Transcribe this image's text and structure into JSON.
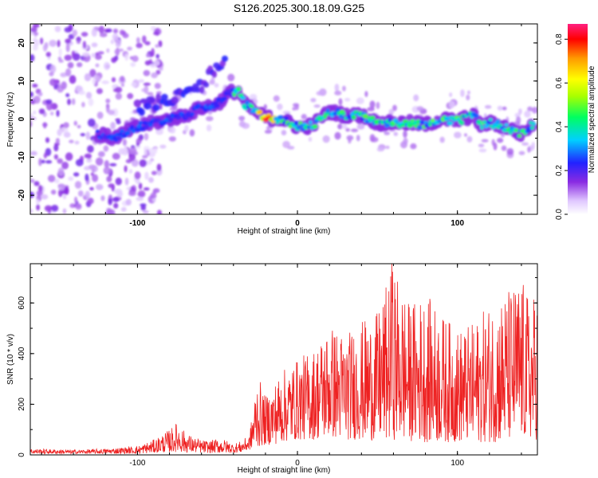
{
  "title": "S126.2025.300.18.09.G25",
  "chart_data": [
    {
      "type": "heatmap",
      "title": "S126.2025.300.18.09.G25",
      "xlabel": "Height of straight line (km)",
      "ylabel": "Frequency (Hz)",
      "xlim": [
        -167,
        150
      ],
      "ylim": [
        -25,
        25
      ],
      "xticks": [
        -100,
        0,
        100
      ],
      "xtick_labels": [
        "-100",
        "0",
        "100"
      ],
      "yticks": [
        -20,
        -10,
        0,
        10,
        20
      ],
      "ytick_labels": [
        "-20",
        "-10",
        "0",
        "10",
        "20"
      ],
      "colorbar": {
        "label": "Normalized spectral amplitude",
        "range": [
          0,
          0.87
        ],
        "ticks": [
          0,
          0.2,
          0.4,
          0.6,
          0.8
        ],
        "tick_labels": [
          "0.0",
          "0.2",
          "0.4",
          "0.6",
          "0.8"
        ],
        "colormap": "rainbow (white-lavender at 0, violet, blue, cyan, green, yellow, orange, red, magenta at max)"
      },
      "ridge": {
        "description": "Main high-amplitude trend of frequency vs height",
        "x": [
          -125,
          -115,
          -100,
          -90,
          -80,
          -70,
          -60,
          -50,
          -42,
          -37,
          -33,
          -30,
          -25,
          -20,
          -15,
          -10,
          -5,
          0,
          5,
          10,
          15,
          20,
          30,
          40,
          50,
          60,
          70,
          80,
          90,
          100,
          110,
          115,
          120,
          130,
          140,
          148
        ],
        "y": [
          -4,
          -5,
          -2,
          -1,
          0,
          1,
          3,
          4,
          7,
          7.5,
          4,
          3,
          1.5,
          0.5,
          0,
          0,
          -1,
          -2,
          -2,
          -1.5,
          0.5,
          2,
          1,
          1,
          -1,
          -1,
          -1,
          -1.5,
          0,
          -0.5,
          1,
          -2,
          -1,
          -2,
          -4,
          -1
        ],
        "peak_amplitude": {
          "x": -20,
          "y": 0,
          "value": 0.87
        }
      },
      "secondary_ridge": {
        "description": "Fainter parallel trend above main ridge",
        "x": [
          -100,
          -90,
          -80,
          -70,
          -60,
          -50,
          -45
        ],
        "y": [
          3,
          4,
          5,
          7,
          9,
          14,
          16
        ]
      },
      "noise_region": {
        "description": "Scattered low-amplitude noise",
        "x_range": [
          -167,
          -100
        ],
        "y_range": [
          -25,
          25
        ]
      }
    },
    {
      "type": "line",
      "xlabel": "Height of straight line (km)",
      "ylabel": "SNR (10 * v/v)",
      "xlim": [
        -167,
        150
      ],
      "ylim": [
        0,
        755
      ],
      "xticks": [
        -100,
        0,
        100
      ],
      "xtick_labels": [
        "-100",
        "0",
        "100"
      ],
      "yticks": [
        0,
        200,
        400,
        600
      ],
      "ytick_labels": [
        "0",
        "200",
        "400",
        "600"
      ],
      "series_color": "#ee2222",
      "envelope": {
        "description": "Upper envelope of the oscillating SNR trace (lower envelope near 0-40)",
        "x": [
          -167,
          -140,
          -120,
          -100,
          -90,
          -85,
          -80,
          -75,
          -70,
          -65,
          -60,
          -55,
          -50,
          -45,
          -40,
          -35,
          -30,
          -25,
          -20,
          -15,
          -10,
          0,
          10,
          20,
          30,
          40,
          50,
          60,
          70,
          80,
          90,
          100,
          110,
          120,
          130,
          140,
          145,
          150
        ],
        "y": [
          25,
          20,
          25,
          35,
          60,
          80,
          100,
          130,
          90,
          70,
          60,
          55,
          65,
          60,
          45,
          55,
          80,
          320,
          230,
          280,
          330,
          380,
          420,
          520,
          480,
          530,
          560,
          755,
          600,
          640,
          560,
          500,
          520,
          600,
          650,
          700,
          620,
          640
        ],
        "lower": [
          5,
          5,
          5,
          5,
          8,
          10,
          10,
          12,
          10,
          10,
          8,
          8,
          8,
          8,
          8,
          10,
          20,
          30,
          40,
          40,
          50,
          60,
          60,
          70,
          60,
          60,
          55,
          60,
          55,
          50,
          50,
          50,
          50,
          50,
          50,
          60,
          60,
          60
        ]
      },
      "peak": {
        "x": 59,
        "y": 755
      }
    }
  ]
}
